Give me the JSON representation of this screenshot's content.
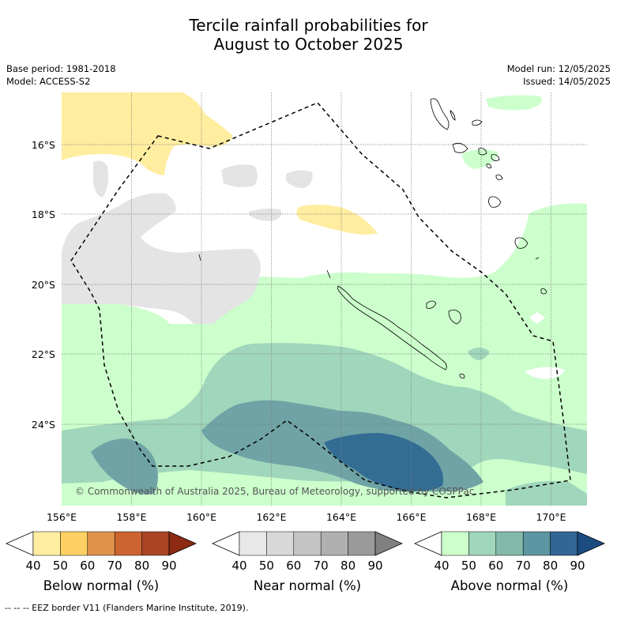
{
  "title": "Tercile rainfall probabilities for\nAugust to October 2025",
  "meta_left": {
    "base_period": "Base period: 1981-2018",
    "model": "Model: ACCESS-S2"
  },
  "meta_right": {
    "model_run": "Model run: 12/05/2025",
    "issued": "Issued: 14/05/2025"
  },
  "lat_labels": [
    "16°S",
    "18°S",
    "20°S",
    "22°S",
    "24°S"
  ],
  "lon_labels": [
    "156°E",
    "158°E",
    "160°E",
    "162°E",
    "164°E",
    "166°E",
    "168°E",
    "170°E"
  ],
  "copyright": "© Commonwealth of Australia 2025, Bureau of Meteorology, supported by COSPPac",
  "legends": [
    {
      "title": "Below normal (%)",
      "ticks": [
        "40",
        "50",
        "60",
        "70",
        "80",
        "90"
      ],
      "colors": [
        "#ffffff",
        "#ffeda0",
        "#fed063",
        "#e0924a",
        "#cc6431",
        "#aa4424",
        "#8c2a14"
      ]
    },
    {
      "title": "Near normal (%)",
      "ticks": [
        "40",
        "50",
        "60",
        "70",
        "80",
        "90"
      ],
      "colors": [
        "#ffffff",
        "#e8e8e8",
        "#d8d8d8",
        "#c4c4c4",
        "#b0b0b0",
        "#9a9a9a",
        "#808080"
      ]
    },
    {
      "title": "Above normal (%)",
      "ticks": [
        "40",
        "50",
        "60",
        "70",
        "80",
        "90"
      ],
      "colors": [
        "#ffffff",
        "#ccffcc",
        "#a0d6bb",
        "#82b8aa",
        "#5b96a2",
        "#326694",
        "#1a4c80"
      ]
    }
  ],
  "footer": "--  --  -- EEZ border V11 (Flanders Marine Institute, 2019).",
  "colors": {
    "above50": "#ccffcc",
    "above60": "#a0d6bb",
    "above70": "#6fa3a5",
    "above80": "#336d94",
    "below50": "#ffeda0",
    "near50": "#e4e4e4"
  }
}
